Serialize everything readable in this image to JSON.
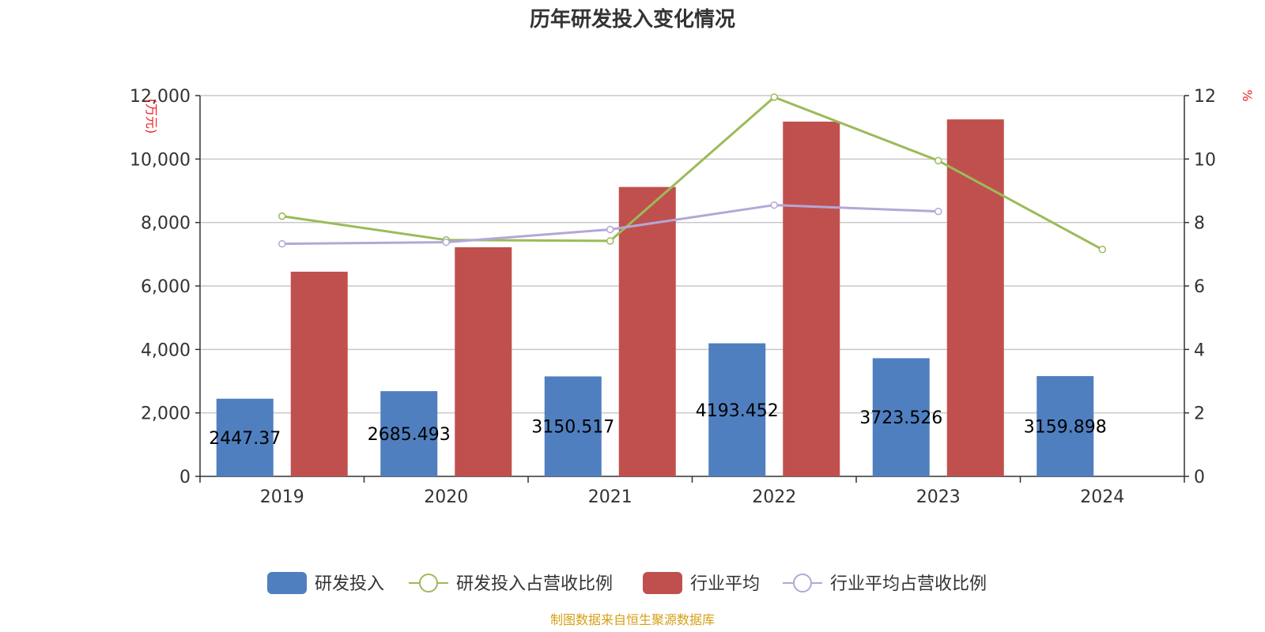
{
  "chart_data": {
    "type": "bar",
    "title": "历年研发投入变化情况",
    "categories": [
      "2019",
      "2020",
      "2021",
      "2022",
      "2023",
      "2024"
    ],
    "y_left": {
      "unit": "(万元)",
      "ylim": [
        0,
        12000
      ],
      "ticks": [
        0,
        2000,
        4000,
        6000,
        8000,
        10000,
        12000
      ],
      "tick_labels": [
        "0",
        "2,000",
        "4,000",
        "6,000",
        "8,000",
        "10,000",
        "12,000"
      ]
    },
    "y_right": {
      "unit": "%",
      "ylim": [
        0,
        12
      ],
      "ticks": [
        0,
        2,
        4,
        6,
        8,
        10,
        12
      ],
      "tick_labels": [
        "0",
        "2",
        "4",
        "6",
        "8",
        "10",
        "12"
      ]
    },
    "grid": true,
    "legend_position": "bottom",
    "series": [
      {
        "name": "研发投入",
        "kind": "bar",
        "axis": "left",
        "color": "#4f7fbf",
        "values": [
          2447.37,
          2685.493,
          3150.517,
          4193.452,
          3723.526,
          3159.898
        ],
        "data_labels": [
          "2447.37",
          "2685.493",
          "3150.517",
          "4193.452",
          "3723.526",
          "3159.898"
        ]
      },
      {
        "name": "研发投入占营收比例",
        "kind": "line",
        "axis": "right",
        "color": "#9bbb59",
        "values": [
          8.2,
          7.45,
          7.42,
          11.95,
          9.95,
          7.15
        ]
      },
      {
        "name": "行业平均",
        "kind": "bar",
        "axis": "left",
        "color": "#c0504d",
        "values": [
          6450,
          7220,
          9120,
          11180,
          11250,
          null
        ]
      },
      {
        "name": "行业平均占营收比例",
        "kind": "line",
        "axis": "right",
        "color": "#b4a7d6",
        "values": [
          7.33,
          7.38,
          7.78,
          8.55,
          8.35,
          null
        ]
      }
    ]
  },
  "source": "制图数据来自恒生聚源数据库"
}
